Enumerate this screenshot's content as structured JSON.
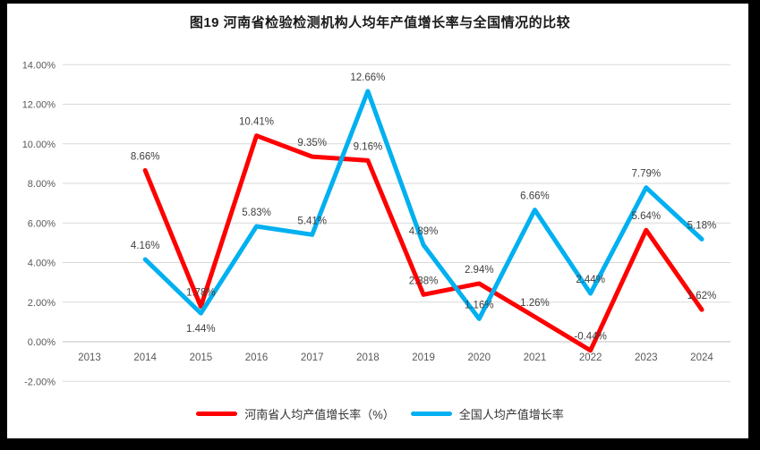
{
  "title": "图19  河南省检验检测机构人均年产值增长率与全国情况的比较",
  "chart_data": {
    "type": "line",
    "categories": [
      "2013",
      "2014",
      "2015",
      "2016",
      "2017",
      "2018",
      "2019",
      "2020",
      "2021",
      "2022",
      "2023",
      "2024"
    ],
    "y_ticks": [
      "-2.00%",
      "0.00%",
      "2.00%",
      "4.00%",
      "6.00%",
      "8.00%",
      "10.00%",
      "12.00%",
      "14.00%"
    ],
    "ylim": [
      -2,
      14
    ],
    "ytick_step": 2,
    "grid": true,
    "legend_position": "bottom",
    "series": [
      {
        "name": "河南省人均产值增长率（%）",
        "color": "#FF0000",
        "values": [
          null,
          8.66,
          1.78,
          10.41,
          9.35,
          9.16,
          2.38,
          2.94,
          1.26,
          -0.44,
          5.64,
          1.62
        ],
        "labels": [
          null,
          "8.66%",
          "1.78%",
          "10.41%",
          "9.35%",
          "9.16%",
          "2.38%",
          "2.94%",
          "1.26%",
          "-0.44%",
          "5.64%",
          "1.62%"
        ],
        "label_positions": [
          null,
          "above",
          "above",
          "above",
          "above",
          "above",
          "above",
          "above",
          "above",
          "above",
          "above",
          "above"
        ]
      },
      {
        "name": "全国人均产值增长率",
        "color": "#00B0F0",
        "values": [
          null,
          4.16,
          1.44,
          5.83,
          5.41,
          12.66,
          4.89,
          1.16,
          6.66,
          2.44,
          7.79,
          5.18
        ],
        "labels": [
          null,
          "4.16%",
          "1.44%",
          "5.83%",
          "5.41%",
          "12.66%",
          "4.89%",
          "1.16%",
          "6.66%",
          "2.44%",
          "7.79%",
          "5.18%"
        ],
        "label_positions": [
          null,
          "above",
          "below",
          "above",
          "above",
          "above",
          "above",
          "above",
          "above",
          "above",
          "above",
          "above"
        ]
      }
    ]
  },
  "colors": {
    "axis_text": "#595959",
    "data_label": "#404040",
    "gridline": "#D9D9D9",
    "axis_line": "#BFBFBF",
    "frame": "#000000",
    "background": "#FFFFFF"
  }
}
